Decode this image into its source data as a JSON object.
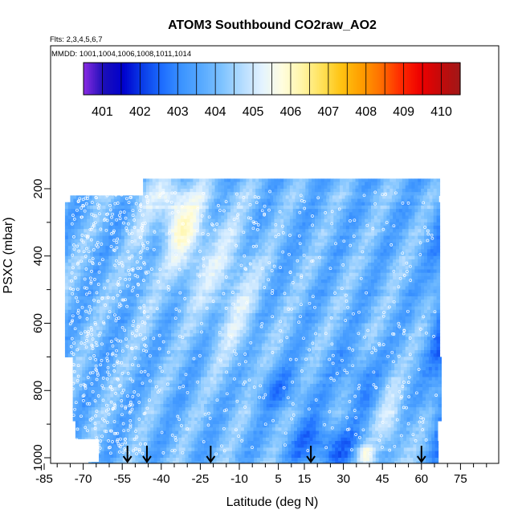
{
  "chart_data": {
    "type": "heatmap",
    "title": "ATOM3 Southbound CO2raw_AO2",
    "subtitle_flights": "Flts: 2,3,4,5,6,7",
    "subtitle_dates": "MMDD: 1001,1004,1006,1008,1011,1014",
    "xlabel": "Latitude (deg N)",
    "ylabel": "PSXC (mbar)",
    "xlim": [
      -85,
      85
    ],
    "ylim": [
      1000,
      120
    ],
    "y_reversed": true,
    "x_ticks": [
      -85,
      -70,
      -55,
      -40,
      -25,
      -10,
      5,
      15,
      30,
      45,
      60,
      75
    ],
    "x_tick_labels": [
      "-85",
      "-70",
      "-55",
      "-40",
      "-25",
      "-10",
      "5",
      "15",
      "30",
      "45",
      "60",
      "75"
    ],
    "y_ticks": [
      200,
      400,
      600,
      800,
      1000
    ],
    "y_tick_labels": [
      "200",
      "400",
      "600",
      "800",
      "1000"
    ],
    "colorbar": {
      "min": 400.5,
      "max": 410.5,
      "tick_values": [
        401,
        402,
        403,
        404,
        405,
        406,
        407,
        408,
        409,
        410
      ],
      "tick_labels": [
        "401",
        "402",
        "403",
        "404",
        "405",
        "406",
        "407",
        "408",
        "409",
        "410"
      ],
      "colors": [
        "#8a2be2",
        "#1c0fb8",
        "#0000cd",
        "#0a3ee8",
        "#1e6fff",
        "#3d95ff",
        "#5aabff",
        "#7fc3ff",
        "#b4dcff",
        "#e3f3ff",
        "#fffde0",
        "#fff5a8",
        "#ffe25a",
        "#ffc312",
        "#ff9f00",
        "#ff6f00",
        "#ff2a00",
        "#ee0000",
        "#c40a0a",
        "#a01818"
      ]
    },
    "arrow_latitudes": [
      -53,
      -45.5,
      -21,
      17.5,
      60
    ],
    "grid": false
  }
}
